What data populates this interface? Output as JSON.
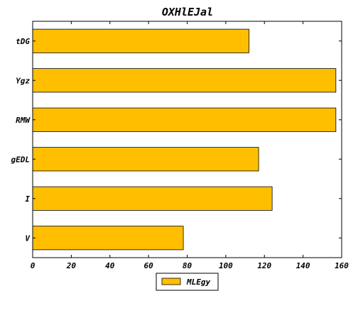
{
  "chart_data": {
    "type": "bar",
    "orientation": "horizontal",
    "title": "OXHlEJal",
    "xlabel": "",
    "ylabel": "",
    "categories": [
      "tDG",
      "Ygz",
      "RMW",
      "gEDL",
      "I",
      "V"
    ],
    "series": [
      {
        "name": "MLEgy",
        "color": "#ffbf00",
        "values": [
          112,
          157,
          157,
          117,
          124,
          78
        ]
      }
    ],
    "xlim": [
      0,
      160
    ],
    "xticks": [
      0,
      20,
      40,
      60,
      80,
      100,
      120,
      140,
      160
    ],
    "grid": false,
    "legend_position": "bottom-center"
  }
}
